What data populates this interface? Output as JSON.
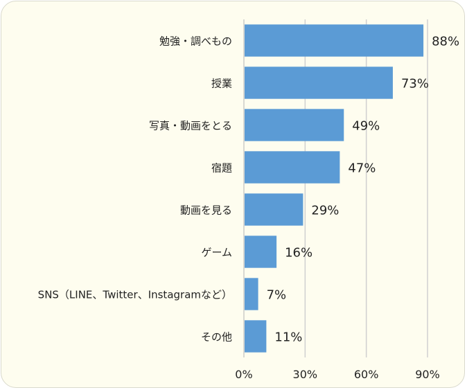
{
  "chart_data": {
    "type": "bar",
    "orientation": "horizontal",
    "categories": [
      "勉強・調べもの",
      "授業",
      "写真・動画をとる",
      "宿題",
      "動画を見る",
      "ゲーム",
      "SNS（LINE、Twitter、Instagramなど）",
      "その他"
    ],
    "values": [
      88,
      73,
      49,
      47,
      29,
      16,
      7,
      11
    ],
    "value_labels": [
      "88%",
      "73%",
      "49%",
      "47%",
      "29%",
      "16%",
      "7%",
      "11%"
    ],
    "xticks": [
      0,
      30,
      60,
      90
    ],
    "xtick_labels": [
      "0%",
      "30%",
      "60%",
      "90%"
    ],
    "xlim": [
      0,
      90
    ],
    "grid": "vertical",
    "bar_color": "#5b9bd5",
    "background_color": "#fefdef"
  }
}
